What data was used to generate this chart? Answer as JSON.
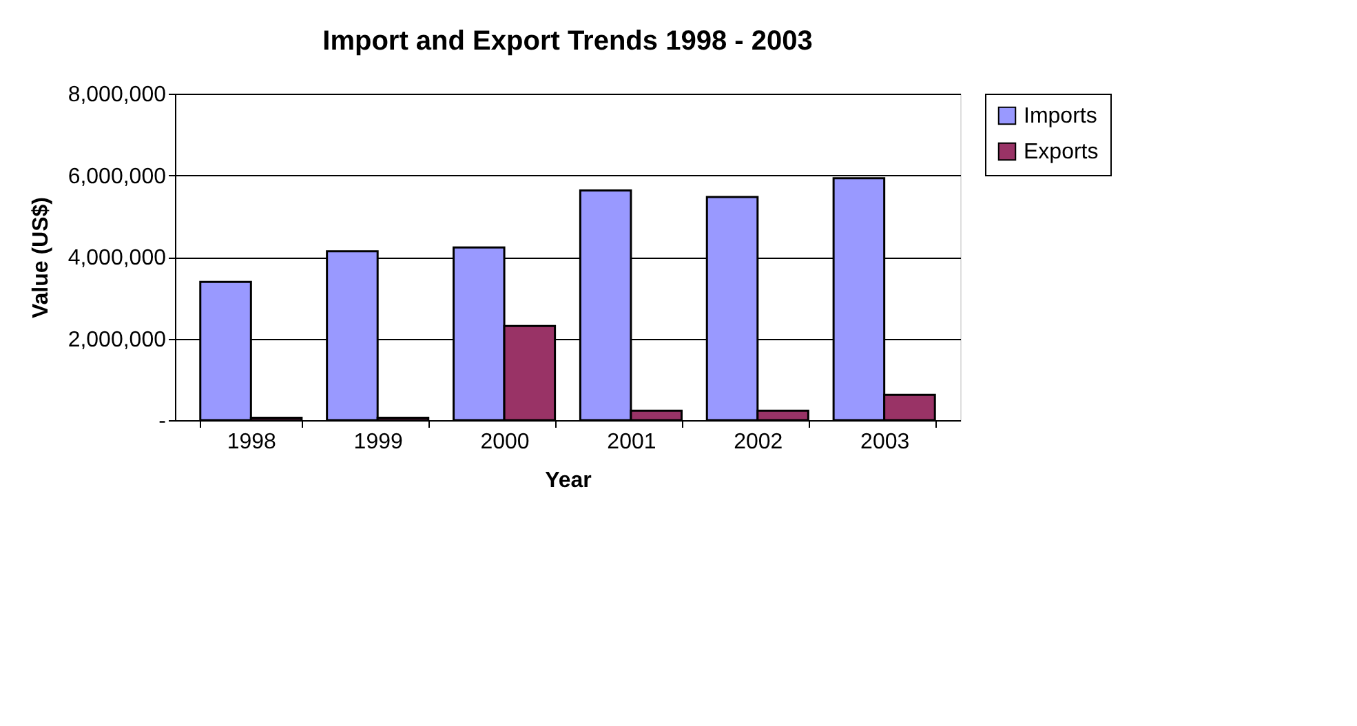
{
  "chart_data": {
    "type": "bar",
    "title": "Import and Export Trends 1998 - 2003",
    "xlabel": "Year",
    "ylabel": "Value (US$)",
    "categories": [
      "1998",
      "1999",
      "2000",
      "2001",
      "2002",
      "2003"
    ],
    "series": [
      {
        "name": "Imports",
        "color": "#9999ff",
        "values": [
          3390000,
          4140000,
          4230000,
          5630000,
          5470000,
          5930000
        ]
      },
      {
        "name": "Exports",
        "color": "#993366",
        "values": [
          60000,
          60000,
          2310000,
          230000,
          230000,
          620000
        ]
      }
    ],
    "ylim": [
      0,
      8000000
    ],
    "yticks": [
      {
        "value": 0,
        "label": "-"
      },
      {
        "value": 2000000,
        "label": "2,000,000"
      },
      {
        "value": 4000000,
        "label": "4,000,000"
      },
      {
        "value": 6000000,
        "label": "6,000,000"
      },
      {
        "value": 8000000,
        "label": "8,000,000"
      }
    ],
    "grid": "y",
    "legend": "right"
  }
}
